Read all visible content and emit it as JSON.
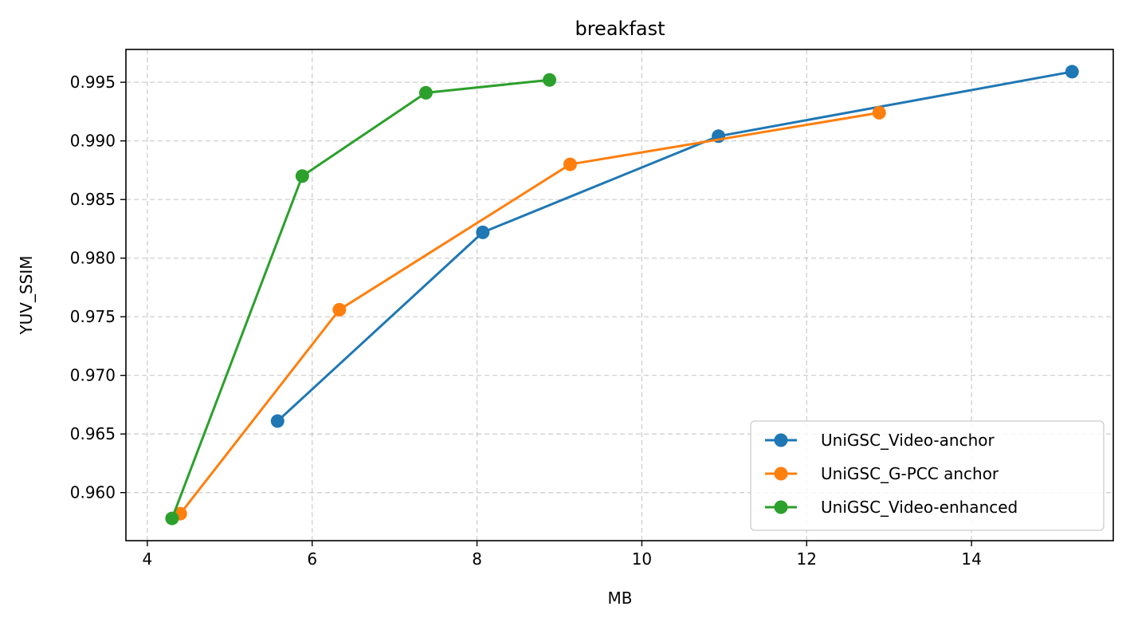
{
  "chart_data": {
    "type": "line",
    "title": "breakfast",
    "xlabel": "MB",
    "ylabel": "YUV_SSIM",
    "xlim": [
      3.74,
      15.72
    ],
    "ylim": [
      0.9559,
      0.9978
    ],
    "xticks": [
      4,
      6,
      8,
      10,
      12,
      14
    ],
    "yticks": [
      0.96,
      0.965,
      0.97,
      0.975,
      0.98,
      0.985,
      0.99,
      0.995
    ],
    "xtick_labels": [
      "4",
      "6",
      "8",
      "10",
      "12",
      "14"
    ],
    "ytick_labels": [
      "0.960",
      "0.965",
      "0.970",
      "0.975",
      "0.980",
      "0.985",
      "0.990",
      "0.995"
    ],
    "grid": true,
    "legend_position": "lower right",
    "series": [
      {
        "name": "UniGSC_Video-anchor",
        "color": "#1f77b4",
        "x": [
          5.58,
          8.07,
          10.93,
          15.22
        ],
        "y": [
          0.9661,
          0.9822,
          0.9904,
          0.9959
        ]
      },
      {
        "name": "UniGSC_G-PCC anchor",
        "color": "#ff7f0e",
        "x": [
          4.4,
          6.33,
          9.13,
          12.88
        ],
        "y": [
          0.9582,
          0.9756,
          0.988,
          0.9924
        ]
      },
      {
        "name": "UniGSC_Video-enhanced",
        "color": "#2ca02c",
        "x": [
          4.3,
          5.88,
          7.38,
          8.88
        ],
        "y": [
          0.9578,
          0.987,
          0.9941,
          0.9952
        ]
      }
    ]
  }
}
